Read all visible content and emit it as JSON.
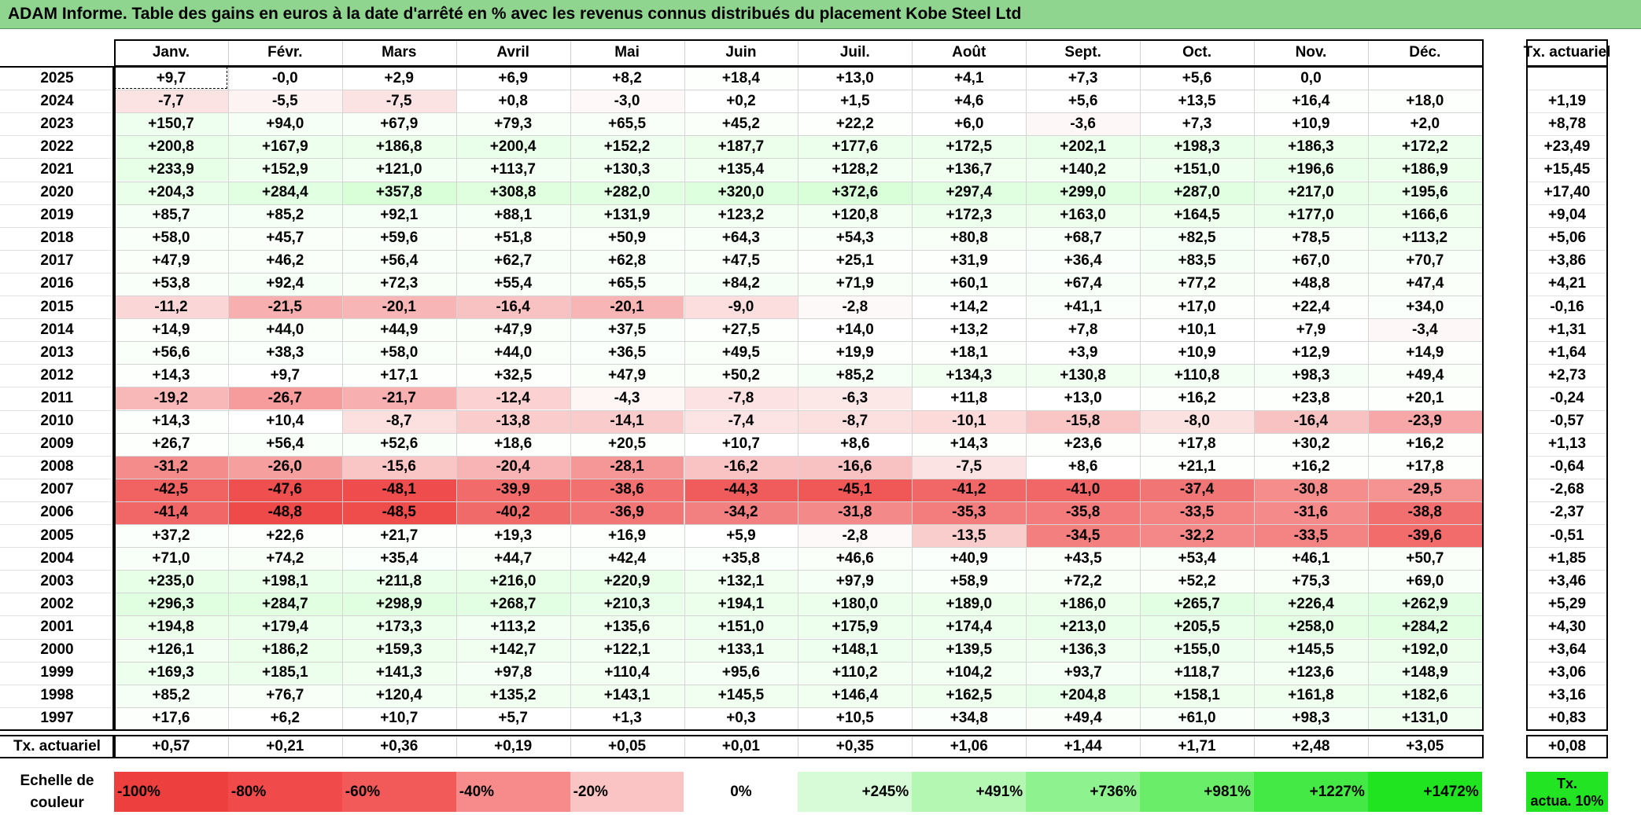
{
  "title": "ADAM Informe. Table des gains en euros à la date d'arrêté en % avec les revenus connus distribués du placement Kobe Steel Ltd",
  "months": [
    "Janv.",
    "Févr.",
    "Mars",
    "Avril",
    "Mai",
    "Juin",
    "Juil.",
    "Août",
    "Sept.",
    "Oct.",
    "Nov.",
    "Déc."
  ],
  "rate_header": "Tx. actuariel",
  "rows": [
    {
      "year": "2025",
      "values": [
        "+9,7",
        "-0,0",
        "+2,9",
        "+6,9",
        "+8,2",
        "+18,4",
        "+13,0",
        "+4,1",
        "+7,3",
        "+5,6",
        "0,0",
        ""
      ],
      "rate": ""
    },
    {
      "year": "2024",
      "values": [
        "-7,7",
        "-5,5",
        "-7,5",
        "+0,8",
        "-3,0",
        "+0,2",
        "+1,5",
        "+4,6",
        "+5,6",
        "+13,5",
        "+16,4",
        "+18,0"
      ],
      "rate": "+1,19"
    },
    {
      "year": "2023",
      "values": [
        "+150,7",
        "+94,0",
        "+67,9",
        "+79,3",
        "+65,5",
        "+45,2",
        "+22,2",
        "+6,0",
        "-3,6",
        "+7,3",
        "+10,9",
        "+2,0"
      ],
      "rate": "+8,78"
    },
    {
      "year": "2022",
      "values": [
        "+200,8",
        "+167,9",
        "+186,8",
        "+200,4",
        "+152,2",
        "+187,7",
        "+177,6",
        "+172,5",
        "+202,1",
        "+198,3",
        "+186,3",
        "+172,2"
      ],
      "rate": "+23,49"
    },
    {
      "year": "2021",
      "values": [
        "+233,9",
        "+152,9",
        "+121,0",
        "+113,7",
        "+130,3",
        "+135,4",
        "+128,2",
        "+136,7",
        "+140,2",
        "+151,0",
        "+196,6",
        "+186,9"
      ],
      "rate": "+15,45"
    },
    {
      "year": "2020",
      "values": [
        "+204,3",
        "+284,4",
        "+357,8",
        "+308,8",
        "+282,0",
        "+320,0",
        "+372,6",
        "+297,4",
        "+299,0",
        "+287,0",
        "+217,0",
        "+195,6"
      ],
      "rate": "+17,40"
    },
    {
      "year": "2019",
      "values": [
        "+85,7",
        "+85,2",
        "+92,1",
        "+88,1",
        "+131,9",
        "+123,2",
        "+120,8",
        "+172,3",
        "+163,0",
        "+164,5",
        "+177,0",
        "+166,6"
      ],
      "rate": "+9,04"
    },
    {
      "year": "2018",
      "values": [
        "+58,0",
        "+45,7",
        "+59,6",
        "+51,8",
        "+50,9",
        "+64,3",
        "+54,3",
        "+80,8",
        "+68,7",
        "+82,5",
        "+78,5",
        "+113,2"
      ],
      "rate": "+5,06"
    },
    {
      "year": "2017",
      "values": [
        "+47,9",
        "+46,2",
        "+56,4",
        "+62,7",
        "+62,8",
        "+47,5",
        "+25,1",
        "+31,9",
        "+36,4",
        "+83,5",
        "+67,0",
        "+70,7"
      ],
      "rate": "+3,86"
    },
    {
      "year": "2016",
      "values": [
        "+53,8",
        "+92,4",
        "+72,3",
        "+55,4",
        "+65,5",
        "+84,2",
        "+71,9",
        "+60,1",
        "+67,4",
        "+77,2",
        "+48,8",
        "+47,4"
      ],
      "rate": "+4,21"
    },
    {
      "year": "2015",
      "values": [
        "-11,2",
        "-21,5",
        "-20,1",
        "-16,4",
        "-20,1",
        "-9,0",
        "-2,8",
        "+14,2",
        "+41,1",
        "+17,0",
        "+22,4",
        "+34,0"
      ],
      "rate": "-0,16"
    },
    {
      "year": "2014",
      "values": [
        "+14,9",
        "+44,0",
        "+44,9",
        "+47,9",
        "+37,5",
        "+27,5",
        "+14,0",
        "+13,2",
        "+7,8",
        "+10,1",
        "+7,9",
        "-3,4"
      ],
      "rate": "+1,31"
    },
    {
      "year": "2013",
      "values": [
        "+56,6",
        "+38,3",
        "+58,0",
        "+44,0",
        "+36,5",
        "+49,5",
        "+19,9",
        "+18,1",
        "+3,9",
        "+10,9",
        "+12,9",
        "+14,9"
      ],
      "rate": "+1,64"
    },
    {
      "year": "2012",
      "values": [
        "+14,3",
        "+9,7",
        "+17,1",
        "+32,5",
        "+47,9",
        "+50,2",
        "+85,2",
        "+134,3",
        "+130,8",
        "+110,8",
        "+98,3",
        "+49,4"
      ],
      "rate": "+2,73"
    },
    {
      "year": "2011",
      "values": [
        "-19,2",
        "-26,7",
        "-21,7",
        "-12,4",
        "-4,3",
        "-7,8",
        "-6,3",
        "+11,8",
        "+13,0",
        "+16,2",
        "+23,8",
        "+20,1"
      ],
      "rate": "-0,24"
    },
    {
      "year": "2010",
      "values": [
        "+14,3",
        "+10,4",
        "-8,7",
        "-13,8",
        "-14,1",
        "-7,4",
        "-8,7",
        "-10,1",
        "-15,8",
        "-8,0",
        "-16,4",
        "-23,9"
      ],
      "rate": "-0,57"
    },
    {
      "year": "2009",
      "values": [
        "+26,7",
        "+56,4",
        "+52,6",
        "+18,6",
        "+20,5",
        "+10,7",
        "+8,6",
        "+14,3",
        "+23,6",
        "+17,8",
        "+30,2",
        "+16,2"
      ],
      "rate": "+1,13"
    },
    {
      "year": "2008",
      "values": [
        "-31,2",
        "-26,0",
        "-15,6",
        "-20,4",
        "-28,1",
        "-16,2",
        "-16,6",
        "-7,5",
        "+8,6",
        "+21,1",
        "+16,2",
        "+17,8"
      ],
      "rate": "-0,64"
    },
    {
      "year": "2007",
      "values": [
        "-42,5",
        "-47,6",
        "-48,1",
        "-39,9",
        "-38,6",
        "-44,3",
        "-45,1",
        "-41,2",
        "-41,0",
        "-37,4",
        "-30,8",
        "-29,5"
      ],
      "rate": "-2,68"
    },
    {
      "year": "2006",
      "values": [
        "-41,4",
        "-48,8",
        "-48,5",
        "-40,2",
        "-36,9",
        "-34,2",
        "-31,8",
        "-35,3",
        "-35,8",
        "-33,5",
        "-31,6",
        "-38,8"
      ],
      "rate": "-2,37"
    },
    {
      "year": "2005",
      "values": [
        "+37,2",
        "+22,6",
        "+21,7",
        "+19,3",
        "+16,9",
        "+5,9",
        "-2,8",
        "-13,5",
        "-34,5",
        "-32,2",
        "-33,5",
        "-39,6"
      ],
      "rate": "-0,51"
    },
    {
      "year": "2004",
      "values": [
        "+71,0",
        "+74,2",
        "+35,4",
        "+44,7",
        "+42,4",
        "+35,8",
        "+46,6",
        "+40,9",
        "+43,5",
        "+53,4",
        "+46,1",
        "+50,7"
      ],
      "rate": "+1,85"
    },
    {
      "year": "2003",
      "values": [
        "+235,0",
        "+198,1",
        "+211,8",
        "+216,0",
        "+220,9",
        "+132,1",
        "+97,9",
        "+58,9",
        "+72,2",
        "+52,2",
        "+75,3",
        "+69,0"
      ],
      "rate": "+3,46"
    },
    {
      "year": "2002",
      "values": [
        "+296,3",
        "+284,7",
        "+298,9",
        "+268,7",
        "+210,3",
        "+194,1",
        "+180,0",
        "+189,0",
        "+186,0",
        "+265,7",
        "+226,4",
        "+262,9"
      ],
      "rate": "+5,29"
    },
    {
      "year": "2001",
      "values": [
        "+194,8",
        "+179,4",
        "+173,3",
        "+113,2",
        "+135,6",
        "+151,0",
        "+175,9",
        "+174,4",
        "+213,0",
        "+205,5",
        "+258,0",
        "+284,2"
      ],
      "rate": "+4,30"
    },
    {
      "year": "2000",
      "values": [
        "+126,1",
        "+186,2",
        "+159,3",
        "+142,7",
        "+122,1",
        "+133,1",
        "+148,1",
        "+139,5",
        "+136,3",
        "+155,0",
        "+145,5",
        "+192,0"
      ],
      "rate": "+3,64"
    },
    {
      "year": "1999",
      "values": [
        "+169,3",
        "+185,1",
        "+141,3",
        "+97,8",
        "+110,4",
        "+95,6",
        "+110,2",
        "+104,2",
        "+93,7",
        "+118,7",
        "+123,6",
        "+148,9"
      ],
      "rate": "+3,06"
    },
    {
      "year": "1998",
      "values": [
        "+85,2",
        "+76,7",
        "+120,4",
        "+135,2",
        "+143,1",
        "+145,5",
        "+146,4",
        "+162,5",
        "+204,8",
        "+158,1",
        "+161,8",
        "+182,6"
      ],
      "rate": "+3,16"
    },
    {
      "year": "1997",
      "values": [
        "+17,6",
        "+6,2",
        "+10,7",
        "+5,7",
        "+1,3",
        "+0,3",
        "+10,5",
        "+34,8",
        "+49,4",
        "+61,0",
        "+98,3",
        "+131,0"
      ],
      "rate": "+0,83"
    }
  ],
  "summary": {
    "label": "Tx. actuariel",
    "values": [
      "+0,57",
      "+0,21",
      "+0,36",
      "+0,19",
      "+0,05",
      "+0,01",
      "+0,35",
      "+1,06",
      "+1,44",
      "+1,71",
      "+2,48",
      "+3,05"
    ],
    "rate": "+0,08"
  },
  "legend": {
    "label_line1": "Echelle de",
    "label_line2": "couleur",
    "items": [
      {
        "text": "-100%",
        "color": "#ee3f3f",
        "align": "left"
      },
      {
        "text": "-80%",
        "color": "#f04a4a",
        "align": "left"
      },
      {
        "text": "-60%",
        "color": "#f25a5a",
        "align": "left"
      },
      {
        "text": "-40%",
        "color": "#f78b8b",
        "align": "left"
      },
      {
        "text": "-20%",
        "color": "#fbc4c4",
        "align": "left"
      },
      {
        "text": "0%",
        "color": "#ffffff",
        "align": "center"
      },
      {
        "text": "+245%",
        "color": "#d7fbd7",
        "align": "right"
      },
      {
        "text": "+491%",
        "color": "#b3f7b3",
        "align": "right"
      },
      {
        "text": "+736%",
        "color": "#8ef28e",
        "align": "right"
      },
      {
        "text": "+981%",
        "color": "#6aee6a",
        "align": "right"
      },
      {
        "text": "+1227%",
        "color": "#45e945",
        "align": "right"
      },
      {
        "text": "+1472%",
        "color": "#21e421",
        "align": "right"
      }
    ],
    "rate_line1": "Tx.",
    "rate_line2": "actua. 10%",
    "rate_color": "#22e422"
  }
}
